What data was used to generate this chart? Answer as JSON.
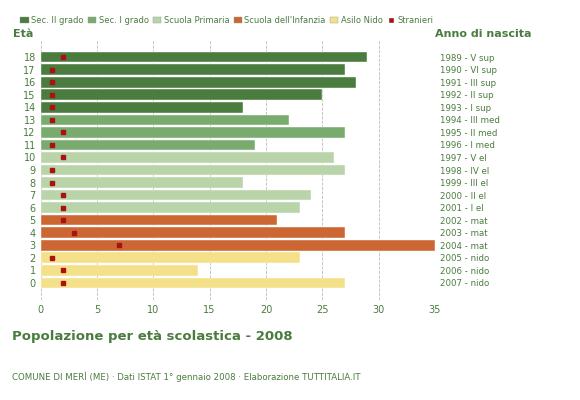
{
  "ages": [
    18,
    17,
    16,
    15,
    14,
    13,
    12,
    11,
    10,
    9,
    8,
    7,
    6,
    5,
    4,
    3,
    2,
    1,
    0
  ],
  "right_labels": [
    "1989 - V sup",
    "1990 - VI sup",
    "1991 - III sup",
    "1992 - II sup",
    "1993 - I sup",
    "1994 - III med",
    "1995 - II med",
    "1996 - I med",
    "1997 - V el",
    "1998 - IV el",
    "1999 - III el",
    "2000 - II el",
    "2001 - I el",
    "2002 - mat",
    "2003 - mat",
    "2004 - mat",
    "2005 - nido",
    "2006 - nido",
    "2007 - nido"
  ],
  "bar_values": [
    29,
    27,
    28,
    25,
    18,
    22,
    27,
    19,
    26,
    27,
    18,
    24,
    23,
    21,
    27,
    35,
    23,
    14,
    27
  ],
  "bar_colors": [
    "#4a7c3f",
    "#4a7c3f",
    "#4a7c3f",
    "#4a7c3f",
    "#4a7c3f",
    "#7aab6e",
    "#7aab6e",
    "#7aab6e",
    "#b8d4a8",
    "#b8d4a8",
    "#b8d4a8",
    "#b8d4a8",
    "#b8d4a8",
    "#cc6633",
    "#cc6633",
    "#cc6633",
    "#f5e08a",
    "#f5e08a",
    "#f5e08a"
  ],
  "stranieri_values": [
    2,
    1,
    1,
    1,
    1,
    1,
    2,
    1,
    2,
    1,
    1,
    2,
    2,
    2,
    3,
    7,
    1,
    2,
    2
  ],
  "legend_labels": [
    "Sec. II grado",
    "Sec. I grado",
    "Scuola Primaria",
    "Scuola dell'Infanzia",
    "Asilo Nido",
    "Stranieri"
  ],
  "legend_colors": [
    "#4a7c3f",
    "#7aab6e",
    "#b8d4a8",
    "#cc6633",
    "#f5e08a",
    "#aa1111"
  ],
  "title": "Popolazione per età scolastica - 2008",
  "subtitle": "COMUNE DI MERÌ (ME) · Dati ISTAT 1° gennaio 2008 · Elaborazione TUTTITALIA.IT",
  "xlabel_age": "Età",
  "xlabel_anno": "Anno di nascita",
  "xlim": [
    0,
    35
  ],
  "xticks": [
    0,
    5,
    10,
    15,
    20,
    25,
    30,
    35
  ],
  "title_color": "#4a7c3f",
  "subtitle_color": "#4a7c3f",
  "axis_color": "#4a7c3f",
  "background_color": "#ffffff",
  "grid_color": "#bbbbbb"
}
